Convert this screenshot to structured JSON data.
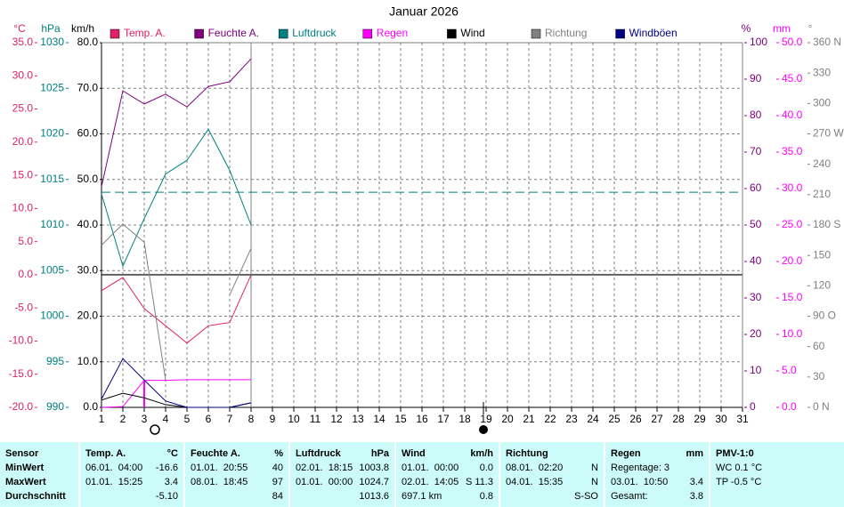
{
  "chart_data": {
    "type": "line",
    "title": "Januar 2026",
    "x": [
      1,
      2,
      3,
      4,
      5,
      6,
      7,
      8
    ],
    "xlim": [
      1,
      31
    ],
    "xticks": [
      1,
      2,
      3,
      4,
      5,
      6,
      7,
      8,
      9,
      10,
      11,
      12,
      13,
      14,
      15,
      16,
      17,
      18,
      19,
      20,
      21,
      22,
      23,
      24,
      25,
      26,
      27,
      28,
      29,
      30,
      31
    ],
    "axes": [
      {
        "label": "°C",
        "color": "#e0206a",
        "side": "left",
        "ylim": [
          -20,
          35
        ],
        "yticks": [
          {
            "value": -20,
            "label": "-20.0"
          },
          {
            "value": -15,
            "label": "-15.0"
          },
          {
            "value": -10,
            "label": "-10.0"
          },
          {
            "value": -5,
            "label": "-5.0"
          },
          {
            "value": 0,
            "label": "0.0"
          },
          {
            "value": 5,
            "label": "5.0"
          },
          {
            "value": 10,
            "label": "10.0"
          },
          {
            "value": 15,
            "label": "15.0"
          },
          {
            "value": 20,
            "label": "20.0"
          },
          {
            "value": 25,
            "label": "25.0"
          },
          {
            "value": 30,
            "label": "30.0"
          },
          {
            "value": 35,
            "label": "35.0"
          }
        ]
      },
      {
        "label": "hPa",
        "color": "#008080",
        "side": "left",
        "ylim": [
          990,
          1030
        ],
        "yticks": [
          990,
          995,
          1000,
          1005,
          1010,
          1015,
          1020,
          1025,
          1030
        ]
      },
      {
        "label": "km/h",
        "color": "#000000",
        "side": "left",
        "ylim": [
          0,
          80
        ],
        "grid": true,
        "yticks": [
          {
            "value": 0,
            "label": "0.0"
          },
          {
            "value": 10,
            "label": "10.0"
          },
          {
            "value": 20,
            "label": "20.0"
          },
          {
            "value": 30,
            "label": "30.0"
          },
          {
            "value": 40,
            "label": "40.0"
          },
          {
            "value": 50,
            "label": "50.0"
          },
          {
            "value": 60,
            "label": "60.0"
          },
          {
            "value": 70,
            "label": "70.0"
          },
          {
            "value": 80,
            "label": "80.0"
          }
        ]
      },
      {
        "label": "%",
        "color": "#800080",
        "side": "right",
        "ylim": [
          0,
          100
        ],
        "yticks": [
          0,
          10,
          20,
          30,
          40,
          50,
          60,
          70,
          80,
          90,
          100
        ]
      },
      {
        "label": "mm",
        "color": "#ff00ff",
        "side": "right",
        "ylim": [
          0,
          50
        ],
        "yticks": [
          {
            "value": 0,
            "label": "0.0"
          },
          {
            "value": 5,
            "label": "5.0"
          },
          {
            "value": 10,
            "label": "10.0"
          },
          {
            "value": 15,
            "label": "15.0"
          },
          {
            "value": 20,
            "label": "20.0"
          },
          {
            "value": 25,
            "label": "25.0"
          },
          {
            "value": 30,
            "label": "30.0"
          },
          {
            "value": 35,
            "label": "35.0"
          },
          {
            "value": 40,
            "label": "40.0"
          },
          {
            "value": 45,
            "label": "45.0"
          },
          {
            "value": 50,
            "label": "50.0"
          }
        ]
      },
      {
        "label": "°",
        "color": "#808080",
        "side": "right",
        "ylim": [
          0,
          360
        ],
        "yticks": [
          {
            "value": 0,
            "label": "0 N"
          },
          30,
          60,
          {
            "value": 90,
            "label": "90 O"
          },
          120,
          150,
          {
            "value": 180,
            "label": "180 S"
          },
          210,
          240,
          {
            "value": 270,
            "label": "270 W"
          },
          300,
          330,
          {
            "value": 360,
            "label": "360 N"
          }
        ]
      }
    ],
    "series": [
      {
        "name": "Temp. A.",
        "color": "#e0206a",
        "axis": 0,
        "values": [
          -2.4,
          -0.4,
          -5.1,
          -7.7,
          -10.3,
          -7.7,
          -7.2,
          0.0
        ]
      },
      {
        "name": "Feuchte A.",
        "color": "#800080",
        "axis": 3,
        "values": [
          60.5,
          86.8,
          83.2,
          85.9,
          82.4,
          88.0,
          89.3,
          95.6
        ]
      },
      {
        "name": "Luftdruck",
        "color": "#008080",
        "axis": 1,
        "values": [
          1013.4,
          1005.5,
          1010.7,
          1015.6,
          1017.1,
          1020.5,
          1016.0,
          1010.0
        ],
        "mean": 1013.6
      },
      {
        "name": "Regen",
        "color": "#ff00ff",
        "axis": 4,
        "values": [
          0.0,
          0.1,
          3.7,
          3.7,
          3.8,
          3.8,
          3.8,
          3.8
        ],
        "bars": [
          0,
          0,
          3.7,
          0,
          0,
          0,
          0,
          0
        ]
      },
      {
        "name": "Wind",
        "color": "#000000",
        "axis": 2,
        "values": [
          1.6,
          3.1,
          2.1,
          0.6,
          0.0,
          0.0,
          0.0,
          1.0
        ]
      },
      {
        "name": "Richtung",
        "color": "#808080",
        "axis": 5,
        "values": [
          160,
          181,
          163,
          27,
          null,
          null,
          111,
          157
        ]
      },
      {
        "name": "Windböen",
        "color": "#000080",
        "axis": 2,
        "values": [
          1.8,
          10.7,
          6.0,
          1.4,
          0.0,
          0.0,
          0.0,
          1.0
        ]
      }
    ]
  },
  "table": {
    "columns": [
      {
        "header": "Sensor",
        "rows": [
          {
            "left": "MinWert"
          },
          {
            "left": "MaxWert"
          },
          {
            "left": "Durchschnitt"
          }
        ]
      },
      {
        "header": "Temp. A.",
        "unit": "°C",
        "rows": [
          {
            "left": "06.01.  04:00",
            "right": "-16.6"
          },
          {
            "left": "01.01.  15:25",
            "right": "3.4"
          },
          {
            "right": "-5.10"
          }
        ]
      },
      {
        "header": "Feuchte A.",
        "unit": "%",
        "rows": [
          {
            "left": "01.01.  20:55",
            "right": "40"
          },
          {
            "left": "08.01.  18:45",
            "right": "97"
          },
          {
            "right": "84"
          }
        ]
      },
      {
        "header": "Luftdruck",
        "unit": "hPa",
        "rows": [
          {
            "left": "02.01.  18:15",
            "right": "1003.8"
          },
          {
            "left": "01.01.  00:00",
            "right": "1024.7"
          },
          {
            "right": "1013.6"
          }
        ]
      },
      {
        "header": "Wind",
        "unit": "km/h",
        "rows": [
          {
            "left": "01.01.  00:00",
            "right": "0.0"
          },
          {
            "left": "02.01.  14:05",
            "right": "S 11.3"
          },
          {
            "left": "697.1 km",
            "right": "0.8"
          }
        ]
      },
      {
        "header": "Richtung",
        "rows": [
          {
            "left": "08.01.  02:20",
            "right": "N"
          },
          {
            "left": "04.01.  15:35",
            "right": "N"
          },
          {
            "right": "S-SO"
          }
        ]
      },
      {
        "header": "Regen",
        "unit": "mm",
        "rows": [
          {
            "left": "Regentage: 3"
          },
          {
            "left": "03.01.  10:50",
            "right": "3.4"
          },
          {
            "left": "Gesamt:",
            "right": "3.8"
          }
        ]
      },
      {
        "header": "PMV-1:0",
        "rows": [
          {
            "left": "WC 0.1 °C"
          },
          {
            "left": "TP -0.5 °C"
          }
        ]
      }
    ]
  }
}
